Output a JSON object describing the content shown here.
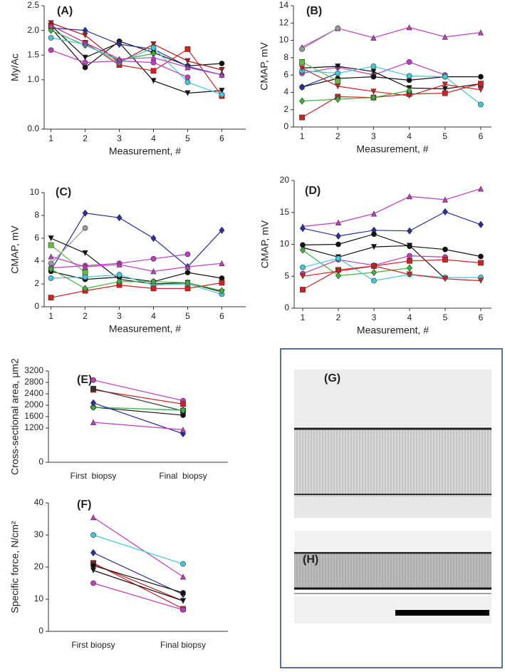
{
  "chart_data": [
    {
      "type": "line",
      "label": "(A)",
      "x_label": "Measurement, #",
      "y_label": "My/Ac",
      "x": [
        1,
        2,
        3,
        4,
        5,
        6
      ],
      "xlim": [
        0.8,
        6.7
      ],
      "xticks": [
        1,
        2,
        3,
        4,
        5,
        6
      ],
      "ylim": [
        0,
        2.5
      ],
      "yticks": [
        {
          "value": 0,
          "label": "0.0"
        },
        {
          "value": 1,
          "label": "1.0"
        },
        1.5,
        {
          "value": 2,
          "label": "2.0"
        },
        2.5
      ],
      "series": [
        {
          "color": "#111111",
          "marker": "circle",
          "values": [
            2.05,
            1.25,
            1.78,
            1.55,
            1.28,
            1.33
          ]
        },
        {
          "color": "#111111",
          "marker": "triangle-down",
          "values": [
            2.1,
            1.45,
            1.75,
            0.98,
            0.73,
            0.78
          ]
        },
        {
          "color": "#2b2f9e",
          "marker": "diamond",
          "values": [
            2.05,
            2.0,
            1.72,
            1.62,
            1.27,
            1.1
          ]
        },
        {
          "color": "#d42020",
          "marker": "square",
          "values": [
            2.1,
            1.75,
            1.3,
            1.18,
            1.62,
            0.67
          ]
        },
        {
          "color": "#b01818",
          "marker": "triangle-down",
          "values": [
            2.15,
            1.9,
            1.35,
            1.72,
            1.38,
            1.2
          ]
        },
        {
          "color": "#3cb43c",
          "marker": "diamond",
          "values": [
            2.0,
            1.7,
            1.4,
            1.53,
            null,
            null
          ]
        },
        {
          "color": "#40c8d8",
          "marker": "circle",
          "values": [
            1.85,
            1.72,
            1.35,
            1.65,
            0.95,
            0.7
          ]
        },
        {
          "color": "#c03cc0",
          "marker": "circle",
          "values": [
            1.6,
            1.35,
            1.38,
            1.35,
            1.05,
            null
          ]
        },
        {
          "color": "#c03cc0",
          "marker": "triangle-up",
          "values": [
            2.1,
            1.75,
            1.42,
            1.45,
            1.25,
            1.1
          ]
        }
      ]
    },
    {
      "type": "line",
      "label": "(B)",
      "x_label": "Measurement, #",
      "y_label": "CMAP, mV",
      "x": [
        1,
        2,
        3,
        4,
        5,
        6
      ],
      "xlim": [
        0.76,
        6.3
      ],
      "xticks": [
        1,
        2,
        3,
        4,
        5,
        6
      ],
      "ylim": [
        0,
        14
      ],
      "yticks": [
        0,
        2,
        4,
        6,
        8,
        10,
        12,
        14
      ],
      "series": [
        {
          "color": "#c03cc0",
          "marker": "triangle-up",
          "values": [
            9.2,
            11.4,
            10.3,
            11.5,
            10.4,
            10.9
          ]
        },
        {
          "color": "#999999",
          "marker": "circle",
          "values": [
            9.0,
            11.4,
            null,
            null,
            null,
            null
          ]
        },
        {
          "color": "#c03cc0",
          "marker": "circle",
          "values": [
            6.2,
            6.9,
            6.0,
            7.5,
            6.0,
            null
          ]
        },
        {
          "color": "#111111",
          "marker": "triangle-down",
          "values": [
            6.8,
            7.0,
            6.4,
            4.5,
            4.4,
            5.0
          ]
        },
        {
          "color": "#111111",
          "marker": "circle",
          "values": [
            4.6,
            5.6,
            5.8,
            5.4,
            5.8,
            5.8
          ]
        },
        {
          "color": "#2b2f9e",
          "marker": "diamond",
          "values": [
            4.6,
            6.2,
            null,
            null,
            null,
            4.7
          ]
        },
        {
          "color": "#40c8d8",
          "marker": "circle",
          "values": [
            6.5,
            6.2,
            7.0,
            5.9,
            5.8,
            2.6
          ]
        },
        {
          "color": "#d42020",
          "marker": "square",
          "values": [
            1.1,
            3.5,
            3.4,
            3.8,
            3.9,
            5.0
          ]
        },
        {
          "color": "#d42020",
          "marker": "triangle-down",
          "values": [
            6.8,
            4.7,
            4.1,
            3.6,
            4.9,
            4.3
          ]
        },
        {
          "color": "#3cb43c",
          "marker": "diamond",
          "values": [
            3.0,
            3.2,
            3.4,
            4.2,
            null,
            null
          ]
        },
        {
          "color": "#66bb44",
          "marker": "square",
          "values": [
            7.5,
            5.3,
            null,
            null,
            null,
            null
          ]
        }
      ]
    },
    {
      "type": "line",
      "label": "(C)",
      "x_label": "Measurement, #",
      "y_label": "CMAP, mV",
      "x": [
        1,
        2,
        3,
        4,
        5,
        6
      ],
      "xlim": [
        0.8,
        6.7
      ],
      "xticks": [
        1,
        2,
        3,
        4,
        5,
        6
      ],
      "ylim": [
        0,
        10
      ],
      "yticks": [
        0,
        2,
        4,
        6,
        8,
        10
      ],
      "series": [
        {
          "color": "#2b2f9e",
          "marker": "diamond",
          "values": [
            3.2,
            8.2,
            7.8,
            6.0,
            3.5,
            6.7
          ]
        },
        {
          "color": "#999999",
          "marker": "circle",
          "values": [
            3.8,
            6.9,
            null,
            null,
            null,
            null
          ]
        },
        {
          "color": "#111111",
          "marker": "triangle-down",
          "values": [
            6.0,
            4.7,
            2.4,
            2.0,
            2.1,
            1.3
          ]
        },
        {
          "color": "#66bb44",
          "marker": "square",
          "values": [
            5.4,
            3.0,
            null,
            null,
            null,
            null
          ]
        },
        {
          "color": "#c03cc0",
          "marker": "circle",
          "values": [
            3.4,
            3.6,
            3.8,
            4.2,
            4.6,
            null
          ]
        },
        {
          "color": "#c03cc0",
          "marker": "triangle-up",
          "values": [
            4.4,
            3.5,
            3.7,
            3.1,
            3.5,
            3.8
          ]
        },
        {
          "color": "#111111",
          "marker": "circle",
          "values": [
            3.1,
            2.4,
            2.6,
            2.2,
            3.0,
            2.5
          ]
        },
        {
          "color": "#40c8d8",
          "marker": "circle",
          "values": [
            2.5,
            2.6,
            2.8,
            1.9,
            2.0,
            1.1
          ]
        },
        {
          "color": "#d42020",
          "marker": "square",
          "values": [
            0.8,
            1.4,
            1.9,
            1.6,
            1.6,
            2.1
          ]
        },
        {
          "color": "#3cb43c",
          "marker": "diamond",
          "values": [
            3.3,
            1.6,
            2.2,
            2.2,
            2.1,
            1.4
          ]
        }
      ]
    },
    {
      "type": "line",
      "label": "(D)",
      "x_label": "Measurement, #",
      "y_label": "CMAP, mV",
      "x": [
        1,
        2,
        3,
        4,
        5,
        6
      ],
      "xlim": [
        0.76,
        6.3
      ],
      "xticks": [
        1,
        2,
        3,
        4,
        5,
        6
      ],
      "ylim": [
        0,
        20
      ],
      "yticks": [
        0,
        5,
        10,
        15,
        20
      ],
      "series": [
        {
          "color": "#c03cc0",
          "marker": "triangle-up",
          "values": [
            12.8,
            13.4,
            14.8,
            17.5,
            17.0,
            18.7
          ]
        },
        {
          "color": "#2b2f9e",
          "marker": "diamond",
          "values": [
            12.5,
            11.3,
            12.2,
            12.1,
            15.1,
            13.1
          ]
        },
        {
          "color": "#111111",
          "marker": "circle",
          "values": [
            9.9,
            10.0,
            11.6,
            9.7,
            9.2,
            8.1
          ]
        },
        {
          "color": "#111111",
          "marker": "triangle-down",
          "values": [
            9.5,
            8.0,
            9.6,
            9.8,
            4.6,
            null
          ]
        },
        {
          "color": "#c03cc0",
          "marker": "circle",
          "values": [
            5.4,
            7.6,
            6.7,
            8.2,
            8.0,
            null
          ]
        },
        {
          "color": "#d42020",
          "marker": "square",
          "values": [
            2.9,
            6.0,
            6.6,
            7.4,
            7.6,
            7.1
          ]
        },
        {
          "color": "#3cb43c",
          "marker": "diamond",
          "values": [
            9.1,
            5.1,
            5.6,
            6.3,
            null,
            null
          ]
        },
        {
          "color": "#40c8d8",
          "marker": "circle",
          "values": [
            6.4,
            7.8,
            4.3,
            5.3,
            4.8,
            4.8
          ]
        },
        {
          "color": "#d42020",
          "marker": "triangle-down",
          "values": [
            5.0,
            5.8,
            6.6,
            5.3,
            4.6,
            4.3
          ]
        }
      ]
    },
    {
      "type": "line",
      "label": "(E)",
      "y_label": "Cross-sectional area, μm2",
      "categories": [
        "First  biopsy",
        "Final  biopsy"
      ],
      "ylim": [
        0,
        3200
      ],
      "yticks": [
        0,
        1200,
        1600,
        2000,
        2400,
        2800,
        3200
      ],
      "series": [
        {
          "color": "#c03cc0",
          "marker": "circle",
          "values": [
            2880,
            2160
          ]
        },
        {
          "color": "#d42020",
          "marker": "square",
          "values": [
            2540,
            2040
          ]
        },
        {
          "color": "#333333",
          "marker": "square",
          "values": [
            2580,
            1800
          ]
        },
        {
          "color": "#111111",
          "marker": "circle",
          "values": [
            1930,
            1650
          ]
        },
        {
          "color": "#40c8d8",
          "marker": "circle",
          "values": [
            1930,
            1830
          ]
        },
        {
          "color": "#3cb43c",
          "marker": "diamond",
          "values": [
            1930,
            1820
          ]
        },
        {
          "color": "#2b2f9e",
          "marker": "diamond",
          "values": [
            2080,
            1000
          ]
        },
        {
          "color": "#c03cc0",
          "marker": "triangle-up",
          "values": [
            1400,
            1140
          ]
        }
      ]
    },
    {
      "type": "line",
      "label": "(F)",
      "y_label": "Specific force, N/cm²",
      "categories": [
        "First biopsy",
        "Final biopsy"
      ],
      "ylim": [
        0,
        40
      ],
      "yticks": [
        0,
        10,
        20,
        30,
        40
      ],
      "series": [
        {
          "color": "#c03cc0",
          "marker": "triangle-up",
          "values": [
            35.5,
            17
          ]
        },
        {
          "color": "#40c8d8",
          "marker": "circle",
          "values": [
            30,
            21
          ]
        },
        {
          "color": "#2b2f9e",
          "marker": "diamond",
          "values": [
            24.5,
            11.5
          ]
        },
        {
          "color": "#d42020",
          "marker": "square",
          "values": [
            21.3,
            7
          ]
        },
        {
          "color": "#b01818",
          "marker": "triangle-down",
          "values": [
            21,
            9.5
          ]
        },
        {
          "color": "#111111",
          "marker": "triangle-down",
          "values": [
            19,
            9.5
          ]
        },
        {
          "color": "#111111",
          "marker": "circle",
          "values": [
            20.5,
            12
          ]
        },
        {
          "color": "#c03cc0",
          "marker": "circle",
          "values": [
            15,
            6.7
          ]
        }
      ]
    }
  ],
  "image_panel": {
    "labels": [
      "(G)",
      "(H)"
    ]
  }
}
